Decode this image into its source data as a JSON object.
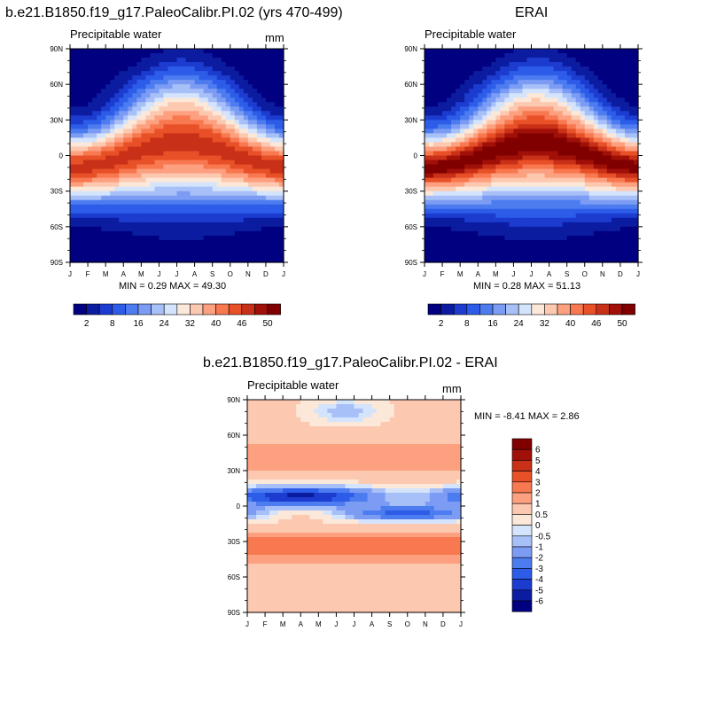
{
  "chart_data": [
    {
      "type": "heatmap",
      "title": "b.e21.B1850.f19_g17.PaleoCalibr.PI.02 (yrs 470-499)",
      "variable": "Precipitable water",
      "units": "mm",
      "x": [
        "J",
        "F",
        "M",
        "A",
        "M",
        "J",
        "J",
        "A",
        "S",
        "O",
        "N",
        "D",
        "J"
      ],
      "y": [
        "90N",
        "60N",
        "30N",
        "0",
        "30S",
        "60S",
        "90S"
      ],
      "stats": "MIN =   0.29 MAX =  49.30",
      "colorbar": {
        "orientation": "horizontal",
        "labels": [
          "2",
          "8",
          "16",
          "24",
          "32",
          "40",
          "46",
          "50"
        ]
      },
      "field": {
        "peak": 47,
        "peak_lat": 10,
        "peak_month": 7.3,
        "lat_shift": 18,
        "scale": 0.5
      }
    },
    {
      "type": "heatmap",
      "title": "ERAI",
      "variable": "Precipitable water",
      "units": "",
      "x": [
        "J",
        "F",
        "M",
        "A",
        "M",
        "J",
        "J",
        "A",
        "S",
        "O",
        "N",
        "D",
        "J"
      ],
      "y": [
        "90N",
        "60N",
        "30N",
        "0",
        "30S",
        "60S",
        "90S"
      ],
      "stats": "MIN =   0.28 MAX =  51.13",
      "colorbar": {
        "orientation": "horizontal",
        "labels": [
          "2",
          "8",
          "16",
          "24",
          "32",
          "40",
          "46",
          "50"
        ]
      },
      "field": {
        "peak": 51,
        "peak_lat": 10,
        "peak_month": 7.3,
        "lat_shift": 18,
        "scale": 0.5
      }
    },
    {
      "type": "heatmap",
      "title": "b.e21.B1850.f19_g17.PaleoCalibr.PI.02 - ERAI",
      "variable": "Precipitable water",
      "units": "mm",
      "x": [
        "J",
        "F",
        "M",
        "A",
        "M",
        "J",
        "J",
        "A",
        "S",
        "O",
        "N",
        "D",
        "J"
      ],
      "y": [
        "90N",
        "60N",
        "30N",
        "0",
        "30S",
        "60S",
        "90S"
      ],
      "stats": "MIN =  -8.41 MAX =   2.86",
      "colorbar": {
        "orientation": "vertical",
        "labels": [
          "6",
          "5",
          "4",
          "3",
          "2",
          "1",
          "0.5",
          "0",
          "-0.5",
          "-1",
          "-2",
          "-3",
          "-4",
          "-5",
          "-6"
        ]
      }
    }
  ],
  "colors": {
    "seq": [
      "#000080",
      "#0c1ca0",
      "#1c3cd0",
      "#2c5ce8",
      "#4c7cf0",
      "#7c9cf4",
      "#a8c0f8",
      "#d4e4fc",
      "#fce8d8",
      "#fcc8b0",
      "#fca080",
      "#f87850",
      "#e85028",
      "#c83018",
      "#a01008",
      "#800000"
    ],
    "div": [
      "#000080",
      "#0c1ca0",
      "#1c3cd0",
      "#2c5ce8",
      "#4c7cf0",
      "#7c9cf4",
      "#a8c0f8",
      "#d4e4fc",
      "#fce8d8",
      "#fcc8b0",
      "#fca080",
      "#f87850",
      "#e85028",
      "#c83018",
      "#a01008",
      "#800000"
    ]
  }
}
